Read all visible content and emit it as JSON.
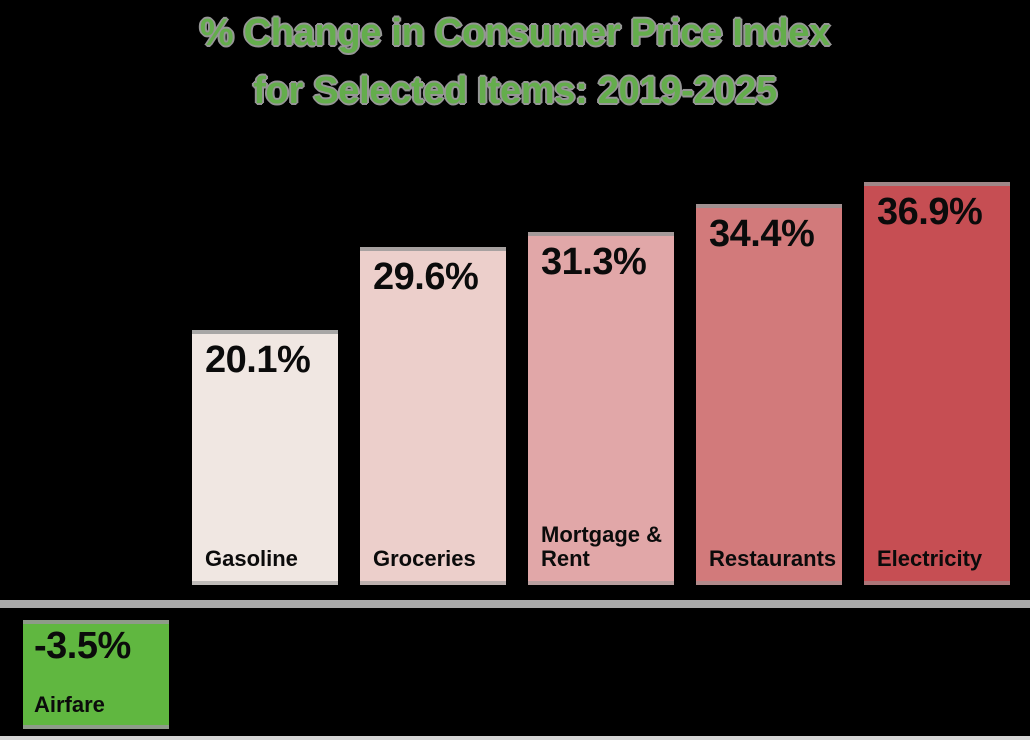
{
  "title": {
    "line1": "% Change in Consumer Price Index",
    "line2": "for Selected Items: 2019-2025",
    "color": "#64ad4c",
    "outline_color": "#969696"
  },
  "chart_data": {
    "type": "bar",
    "title": "% Change in Consumer Price Index for Selected Items: 2019-2025",
    "orientation": "vertical",
    "unit": "%",
    "categories": [
      "Gasoline",
      "Groceries",
      "Mortgage & Rent",
      "Restaurants",
      "Electricity",
      "Airfare"
    ],
    "values": [
      20.1,
      29.6,
      31.3,
      34.4,
      36.9,
      -3.5
    ],
    "bars": [
      {
        "category": "Gasoline",
        "value": 20.1,
        "display": "20.1%",
        "color": "#f0e7e2"
      },
      {
        "category": "Groceries",
        "value": 29.6,
        "display": "29.6%",
        "color": "#eccfcb"
      },
      {
        "category": "Mortgage & Rent",
        "value": 31.3,
        "display": "31.3%",
        "color": "#e1a7a8"
      },
      {
        "category": "Restaurants",
        "value": 34.4,
        "display": "34.4%",
        "color": "#d27a7b"
      },
      {
        "category": "Electricity",
        "value": 36.9,
        "display": "36.9%",
        "color": "#c64e53"
      },
      {
        "category": "Airfare",
        "value": -3.5,
        "display": "-3.5%",
        "color": "#60b740"
      }
    ],
    "baseline": {
      "value": 0,
      "style": "solid-gray-rule",
      "color": "#a9a9a9"
    },
    "value_labels_position": "inside-top-left",
    "category_labels_position": "inside-bottom-left",
    "legend": "none",
    "gridlines": false,
    "background": "#000000"
  }
}
